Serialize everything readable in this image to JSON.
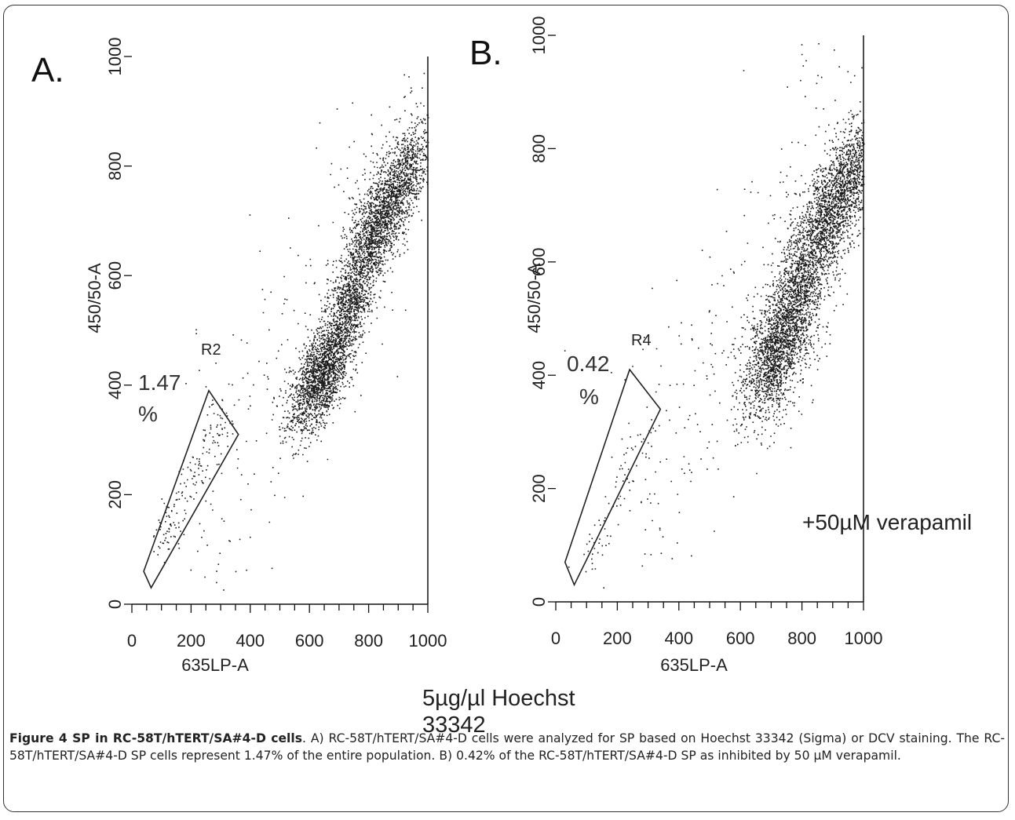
{
  "figure": {
    "panels": [
      {
        "id": "A",
        "letter": "A.",
        "gate_name": "R2",
        "gate_percent_value": "1.47",
        "gate_percent_unit": "%",
        "note": ""
      },
      {
        "id": "B",
        "letter": "B.",
        "gate_name": "R4",
        "gate_percent_value": "0.42",
        "gate_percent_unit": "%",
        "note": "+50µM verapamil"
      }
    ],
    "staining_note": "5µg/µl Hoechst\n33342",
    "caption": {
      "label": "Figure 4 SP in RC-58T/hTERT/SA#4-D cells",
      "text": ". A) RC-58T/hTERT/SA#4-D cells were analyzed for SP based on Hoechst 33342 (Sigma) or DCV staining. The RC-58T/hTERT/SA#4-D SP cells represent 1.47% of the entire population. B) 0.42% of the RC-58T/hTERT/SA#4-D SP as inhibited by 50 µM verapamil."
    }
  },
  "chart_data": [
    {
      "type": "scatter",
      "title": "A.",
      "xlabel": "635LP-A",
      "ylabel": "450/50-A",
      "xlim": [
        0,
        1000
      ],
      "ylim": [
        0,
        1000
      ],
      "x_ticks": [
        "0",
        "200",
        "400",
        "600",
        "800",
        "1000"
      ],
      "y_ticks": [
        "0",
        "200",
        "400",
        "600",
        "800",
        "1000"
      ],
      "gate": {
        "name": "R2",
        "percent": 1.47,
        "polygon": [
          [
            40,
            60
          ],
          [
            260,
            390
          ],
          [
            360,
            310
          ],
          [
            65,
            30
          ]
        ]
      },
      "clusters": [
        {
          "x": 620,
          "y": 400,
          "spread": 45,
          "weight": 0.23
        },
        {
          "x": 680,
          "y": 460,
          "spread": 40,
          "weight": 0.15
        },
        {
          "x": 740,
          "y": 560,
          "spread": 40,
          "weight": 0.14
        },
        {
          "x": 800,
          "y": 660,
          "spread": 40,
          "weight": 0.14
        },
        {
          "x": 860,
          "y": 730,
          "spread": 45,
          "weight": 0.16
        },
        {
          "x": 930,
          "y": 790,
          "spread": 45,
          "weight": 0.13
        }
      ],
      "sp_tail": {
        "from": [
          90,
          110
        ],
        "to": [
          330,
          370
        ],
        "count": 160
      }
    },
    {
      "type": "scatter",
      "title": "B.",
      "xlabel": "635LP-A",
      "ylabel": "450/50-A",
      "xlim": [
        0,
        1000
      ],
      "ylim": [
        0,
        1000
      ],
      "x_ticks": [
        "0",
        "200",
        "400",
        "600",
        "800",
        "1000"
      ],
      "y_ticks": [
        "0",
        "200",
        "400",
        "600",
        "800",
        "1000"
      ],
      "gate": {
        "name": "R4",
        "percent": 0.42,
        "polygon": [
          [
            30,
            70
          ],
          [
            240,
            410
          ],
          [
            340,
            340
          ],
          [
            60,
            30
          ]
        ]
      },
      "clusters": [
        {
          "x": 710,
          "y": 430,
          "spread": 55,
          "weight": 0.27
        },
        {
          "x": 770,
          "y": 520,
          "spread": 50,
          "weight": 0.18
        },
        {
          "x": 830,
          "y": 620,
          "spread": 50,
          "weight": 0.16
        },
        {
          "x": 900,
          "y": 700,
          "spread": 50,
          "weight": 0.17
        },
        {
          "x": 960,
          "y": 760,
          "spread": 45,
          "weight": 0.13
        }
      ],
      "sp_tail": {
        "from": [
          100,
          70
        ],
        "to": [
          300,
          320
        ],
        "count": 70
      }
    }
  ]
}
